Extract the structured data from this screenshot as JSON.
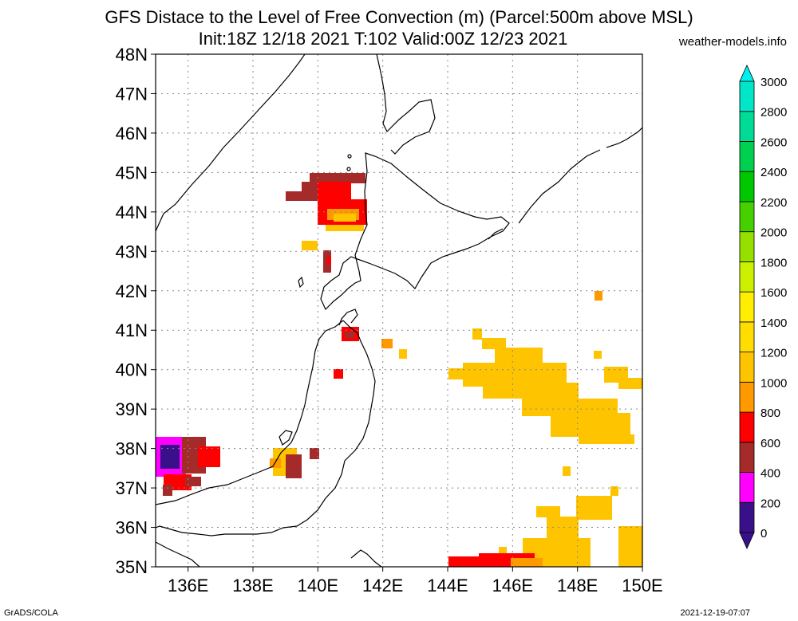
{
  "title_line1": "GFS Distace to the Level of Free Convection (m) (Parcel:500m above MSL)",
  "title_line2": "Init:18Z 12/18 2021 T:102 Valid:00Z 12/23 2021",
  "website": "weather-models.info",
  "footer_left": "GrADS/COLA",
  "footer_right": "2021-12-19-07:07",
  "map": {
    "lon_range": [
      135,
      150
    ],
    "lat_range": [
      35,
      48
    ],
    "lat_labels": [
      "35N",
      "36N",
      "37N",
      "38N",
      "39N",
      "40N",
      "41N",
      "42N",
      "43N",
      "44N",
      "45N",
      "46N",
      "47N",
      "48N"
    ],
    "lon_labels": [
      "136E",
      "138E",
      "140E",
      "142E",
      "144E",
      "146E",
      "148E",
      "150E"
    ],
    "gridlines": "dotted"
  },
  "colorbar": {
    "levels": [
      "0",
      "200",
      "400",
      "600",
      "800",
      "1000",
      "1200",
      "1400",
      "1600",
      "1800",
      "2000",
      "2200",
      "2400",
      "2600",
      "2800",
      "3000"
    ],
    "colors": [
      "#3a0f8a",
      "#ff00ff",
      "#a52a2a",
      "#ff0000",
      "#ff9900",
      "#ffc400",
      "#ffdd00",
      "#ffee00",
      "#cdf000",
      "#96e000",
      "#46d000",
      "#00c800",
      "#00d050",
      "#00dc96",
      "#00e6c8",
      "#00f0f0"
    ]
  }
}
